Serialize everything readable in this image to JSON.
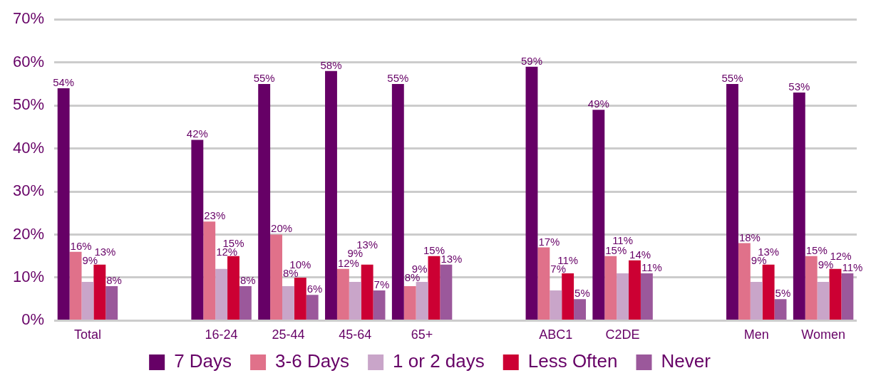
{
  "chart_data": {
    "type": "bar",
    "categories": [
      "Total",
      null,
      "16-24",
      "25-44",
      "45-64",
      "65+",
      null,
      "ABC1",
      "C2DE",
      null,
      "Men",
      "Women"
    ],
    "series": [
      {
        "name": "7 Days",
        "color": "#660066",
        "values": [
          54,
          null,
          42,
          55,
          58,
          55,
          null,
          59,
          49,
          null,
          55,
          53
        ],
        "value_labels": [
          "54%",
          null,
          "42%",
          "55%",
          "58%",
          "55%",
          null,
          "59%",
          "49%",
          null,
          "55%",
          "53%"
        ]
      },
      {
        "name": "3-6 Days",
        "color": "#e0718a",
        "values": [
          16,
          null,
          23,
          20,
          12,
          8,
          null,
          17,
          15,
          null,
          18,
          15
        ],
        "value_labels": [
          "16%",
          null,
          "23%",
          "20%",
          "12%",
          "8%",
          null,
          "17%",
          "15%",
          null,
          "18%",
          "15%"
        ]
      },
      {
        "name": "1 or 2 days",
        "color": "#c9a5c9",
        "values": [
          9,
          null,
          12,
          8,
          9,
          9,
          null,
          7,
          11,
          null,
          9,
          9
        ],
        "value_labels": [
          "9%",
          null,
          "12%",
          "8%",
          "9%",
          "9%",
          null,
          "7%",
          "11%",
          null,
          "9%",
          "9%"
        ]
      },
      {
        "name": "Less Often",
        "color": "#cc0033",
        "values": [
          13,
          null,
          15,
          10,
          13,
          15,
          null,
          11,
          14,
          null,
          13,
          12
        ],
        "value_labels": [
          "13%",
          null,
          "15%",
          "10%",
          "13%",
          "15%",
          null,
          "11%",
          "14%",
          null,
          "13%",
          "12%"
        ]
      },
      {
        "name": "Never",
        "color": "#9b589b",
        "values": [
          8,
          null,
          8,
          6,
          7,
          13,
          null,
          5,
          11,
          null,
          5,
          11
        ],
        "value_labels": [
          "8%",
          null,
          "8%",
          "6%",
          "7%",
          "13%",
          null,
          "5%",
          "11%",
          null,
          "5%",
          "11%"
        ]
      }
    ],
    "ylim": [
      0,
      70
    ],
    "yticks": [
      {
        "value": 0,
        "label": "0%"
      },
      {
        "value": 10,
        "label": "10%"
      },
      {
        "value": 20,
        "label": "20%"
      },
      {
        "value": 30,
        "label": "30%"
      },
      {
        "value": 40,
        "label": "40%"
      },
      {
        "value": 50,
        "label": "50%"
      },
      {
        "value": 60,
        "label": "60%"
      },
      {
        "value": 70,
        "label": "70%"
      }
    ],
    "grid": "y",
    "legend": "bottom"
  }
}
